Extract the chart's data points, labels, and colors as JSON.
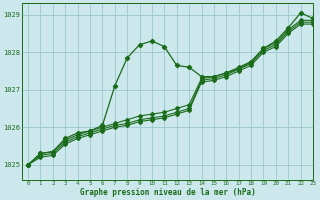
{
  "title": "Graphe pression niveau de la mer (hPa)",
  "background_color": "#cce8ec",
  "grid_color": "#9dc8ce",
  "line_color": "#1a6b1a",
  "xlim": [
    -0.5,
    23
  ],
  "ylim": [
    1024.6,
    1029.3
  ],
  "yticks": [
    1025,
    1026,
    1027,
    1028,
    1029
  ],
  "xticks": [
    0,
    1,
    2,
    3,
    4,
    5,
    6,
    7,
    8,
    9,
    10,
    11,
    12,
    13,
    14,
    15,
    16,
    17,
    18,
    19,
    20,
    21,
    22,
    23
  ],
  "series": [
    [
      1025.0,
      1025.3,
      1025.35,
      1025.7,
      1025.85,
      1025.9,
      1026.05,
      1027.1,
      1027.85,
      1028.2,
      1028.3,
      1028.15,
      1027.65,
      1027.6,
      1027.35,
      1027.35,
      1027.45,
      1027.55,
      1027.75,
      1028.1,
      1028.3,
      1028.65,
      1029.05,
      1028.9
    ],
    [
      1025.0,
      1025.3,
      1025.35,
      1025.65,
      1025.8,
      1025.9,
      1026.0,
      1026.1,
      1026.2,
      1026.3,
      1026.35,
      1026.4,
      1026.5,
      1026.6,
      1027.3,
      1027.35,
      1027.45,
      1027.6,
      1027.75,
      1028.1,
      1028.25,
      1028.6,
      1028.85,
      1028.85
    ],
    [
      1025.0,
      1025.25,
      1025.3,
      1025.6,
      1025.75,
      1025.85,
      1025.95,
      1026.05,
      1026.1,
      1026.2,
      1026.25,
      1026.3,
      1026.4,
      1026.5,
      1027.25,
      1027.3,
      1027.4,
      1027.55,
      1027.7,
      1028.05,
      1028.2,
      1028.55,
      1028.8,
      1028.8
    ],
    [
      1025.0,
      1025.2,
      1025.25,
      1025.55,
      1025.7,
      1025.8,
      1025.9,
      1026.0,
      1026.05,
      1026.15,
      1026.2,
      1026.25,
      1026.35,
      1026.45,
      1027.2,
      1027.25,
      1027.35,
      1027.5,
      1027.65,
      1028.0,
      1028.15,
      1028.5,
      1028.75,
      1028.75
    ]
  ]
}
